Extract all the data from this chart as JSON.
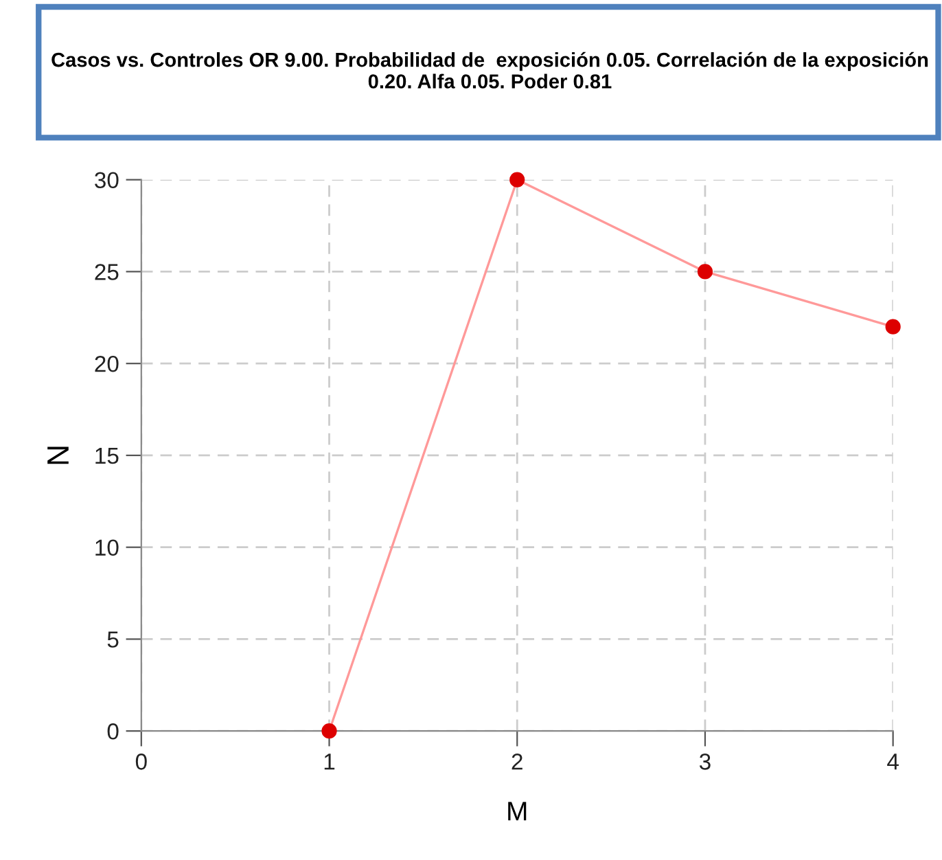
{
  "chart_data": {
    "type": "line",
    "title": "Casos vs. Controles OR 9.00. Probabilidad de  exposición 0.05. Correlación de la exposición 0.20. Alfa 0.05. Poder 0.81",
    "xlabel": "M",
    "ylabel": "N",
    "x": [
      1,
      2,
      3,
      4
    ],
    "series": [
      {
        "color": "#ff9999",
        "colors": [
          "#dd0000",
          "#dd0000",
          "#dd0000",
          "#dd0000"
        ],
        "values": [
          0,
          30,
          25,
          22
        ]
      }
    ],
    "xlim": [
      0,
      4
    ],
    "xticks": [
      0,
      1,
      2,
      3,
      4
    ],
    "ylim": [
      0,
      30
    ],
    "yticks": [
      0,
      5,
      10,
      15,
      20,
      25,
      30
    ],
    "grid": true,
    "marker": "circle",
    "line_style": "solid"
  }
}
